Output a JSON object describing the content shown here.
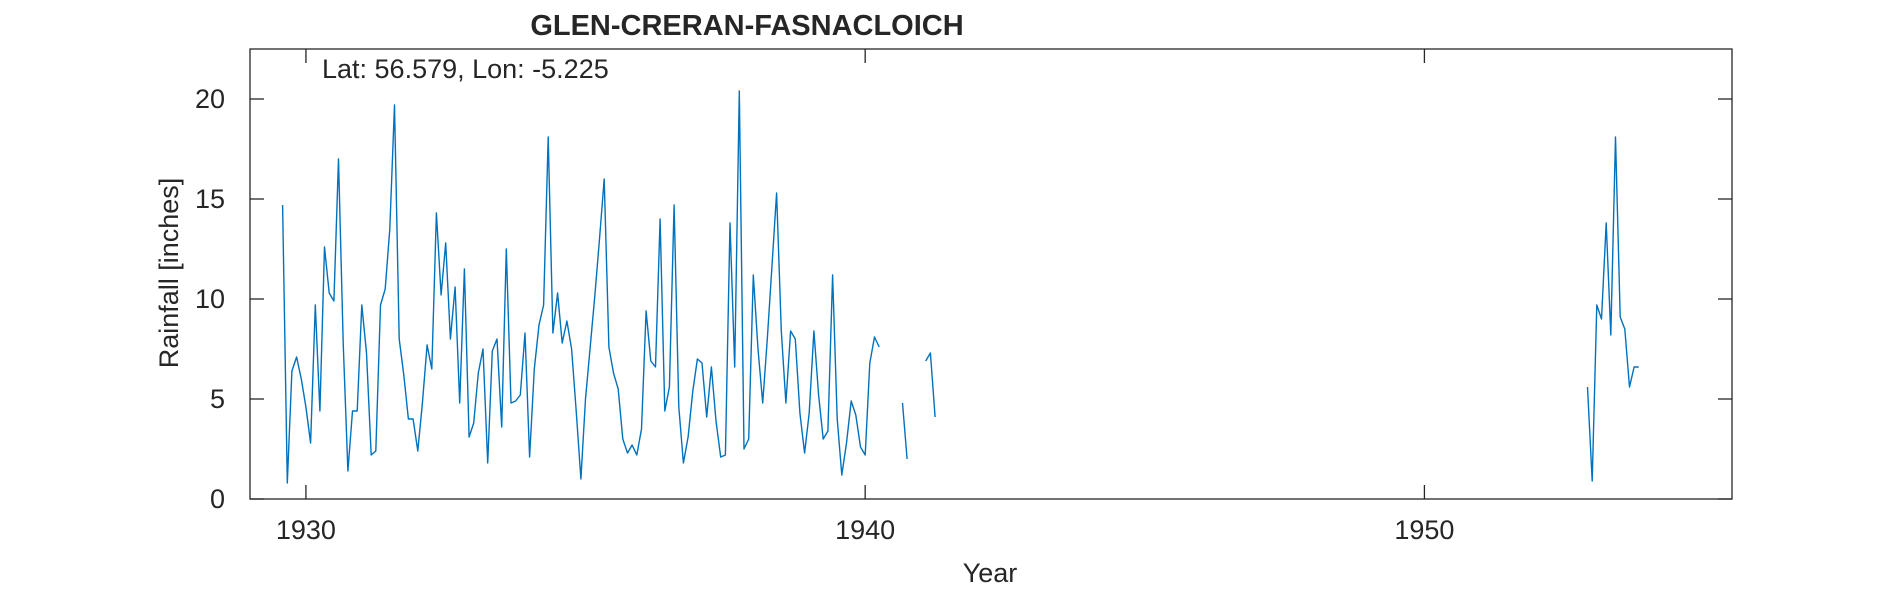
{
  "chart_data": {
    "type": "line",
    "title": "GLEN-CRERAN-FASNACLOICH",
    "annotation": "Lat: 56.579, Lon: -5.225",
    "xlabel": "Year",
    "ylabel": "Rainfall [inches]",
    "xlim": [
      1929.0,
      1955.5
    ],
    "ylim": [
      0,
      22.5
    ],
    "xticks": [
      1930,
      1940,
      1950
    ],
    "xtick_labels": [
      "1930",
      "1940",
      "1950"
    ],
    "yticks": [
      0,
      5,
      10,
      15,
      20
    ],
    "ytick_labels": [
      "0",
      "5",
      "10",
      "15",
      "20"
    ],
    "grid": false,
    "line_color": "#0072BD",
    "series": [
      {
        "segments": [
          {
            "x": [
              1929.583,
              1929.667,
              1929.75,
              1929.833,
              1929.917,
              1930.0,
              1930.083,
              1930.167,
              1930.25,
              1930.333,
              1930.417,
              1930.5,
              1930.583,
              1930.667,
              1930.75,
              1930.833,
              1930.917,
              1931.0,
              1931.083,
              1931.167,
              1931.25,
              1931.333,
              1931.417,
              1931.5,
              1931.583,
              1931.667,
              1931.75,
              1931.833,
              1931.917,
              1932.0,
              1932.083,
              1932.167,
              1932.25,
              1932.333,
              1932.417,
              1932.5,
              1932.583,
              1932.667,
              1932.75,
              1932.833,
              1932.917,
              1933.0,
              1933.083,
              1933.167,
              1933.25,
              1933.333,
              1933.417,
              1933.5,
              1933.583,
              1933.667,
              1933.75,
              1933.833,
              1933.917,
              1934.0,
              1934.083,
              1934.167,
              1934.25,
              1934.333,
              1934.417,
              1934.5,
              1934.583,
              1934.667,
              1934.75,
              1934.833,
              1934.917,
              1935.0,
              1935.083,
              1935.167,
              1935.25,
              1935.333,
              1935.417,
              1935.5,
              1935.583,
              1935.667,
              1935.75,
              1935.833,
              1935.917,
              1936.0,
              1936.083,
              1936.167,
              1936.25,
              1936.333,
              1936.417,
              1936.5,
              1936.583,
              1936.667,
              1936.75,
              1936.833,
              1936.917,
              1937.0,
              1937.083,
              1937.167,
              1937.25,
              1937.333,
              1937.417,
              1937.5,
              1937.583,
              1937.667,
              1937.75,
              1937.833,
              1937.917,
              1938.0,
              1938.083,
              1938.167,
              1938.25,
              1938.333,
              1938.417,
              1938.5,
              1938.583,
              1938.667,
              1938.75,
              1938.833,
              1938.917,
              1939.0,
              1939.083,
              1939.167,
              1939.25,
              1939.333,
              1939.417,
              1939.5,
              1939.583,
              1939.667,
              1939.75,
              1939.833,
              1939.917,
              1940.0,
              1940.083,
              1940.167,
              1940.25
            ],
            "y": [
              14.7,
              0.8,
              6.4,
              7.1,
              6.0,
              4.6,
              2.8,
              9.7,
              4.4,
              12.6,
              10.3,
              9.9,
              17.0,
              7.8,
              1.4,
              4.4,
              4.4,
              9.7,
              7.3,
              2.2,
              2.4,
              9.7,
              10.5,
              13.5,
              19.7,
              8.0,
              6.2,
              4.0,
              4.0,
              2.4,
              4.8,
              7.7,
              6.5,
              14.3,
              10.2,
              12.8,
              8.0,
              10.6,
              4.8,
              11.5,
              3.1,
              3.8,
              6.3,
              7.5,
              1.8,
              7.4,
              8.0,
              3.6,
              12.5,
              4.8,
              4.9,
              5.2,
              8.3,
              2.1,
              6.5,
              8.7,
              9.7,
              18.1,
              8.3,
              10.3,
              7.8,
              8.9,
              7.5,
              4.4,
              1.0,
              5.0,
              7.6,
              10.2,
              13.0,
              16.0,
              7.6,
              6.3,
              5.5,
              3.0,
              2.3,
              2.7,
              2.2,
              3.5,
              9.4,
              6.9,
              6.6,
              14.0,
              4.4,
              5.6,
              14.7,
              4.6,
              1.8,
              3.1,
              5.4,
              7.0,
              6.8,
              4.1,
              6.6,
              3.9,
              2.1,
              2.2,
              13.8,
              6.6,
              20.4,
              2.5,
              3.0,
              11.2,
              7.5,
              4.8,
              8.0,
              11.6,
              15.3,
              8.4,
              4.8,
              8.4,
              8.0,
              4.3,
              2.3,
              4.3,
              8.4,
              5.2,
              3.0,
              3.4,
              11.2,
              4.0,
              1.2,
              2.8,
              4.9,
              4.2,
              2.6,
              2.2,
              6.8,
              8.1,
              7.6
            ]
          },
          {
            "x": [
              1940.667,
              1940.75
            ],
            "y": [
              4.8,
              2.0
            ]
          },
          {
            "x": [
              1941.083,
              1941.167,
              1941.25
            ],
            "y": [
              6.9,
              7.3,
              4.1
            ]
          },
          {
            "x": [
              1952.917,
              1953.0,
              1953.083,
              1953.167,
              1953.25,
              1953.333,
              1953.417,
              1953.5,
              1953.583,
              1953.667,
              1953.75,
              1953.833
            ],
            "y": [
              5.6,
              0.9,
              9.7,
              9.0,
              13.8,
              8.2,
              18.1,
              9.1,
              8.5,
              5.6,
              6.6,
              6.6
            ]
          }
        ]
      }
    ]
  }
}
